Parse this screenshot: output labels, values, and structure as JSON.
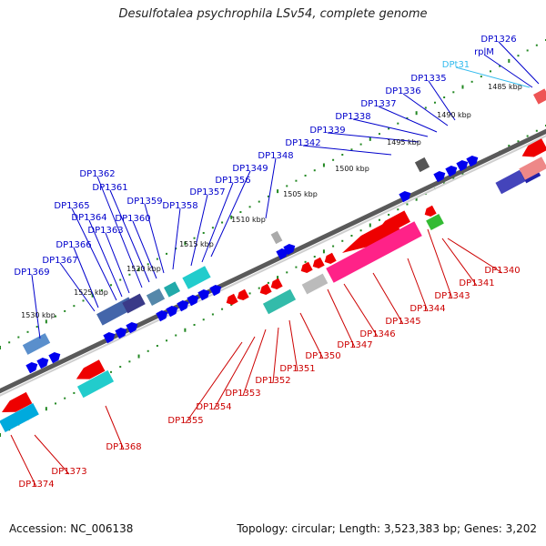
{
  "title": "Desulfotalea psychrophila LSv54, complete genome",
  "footer": {
    "accession": "Accession: NC_006138",
    "summary": "Topology: circular; Length: 3,523,383 bp; Genes: 3,202"
  },
  "colors": {
    "forward_label": "#0000cc",
    "reverse_label": "#cc0000",
    "trna_label": "#33bbee",
    "backbone": "#888888",
    "ticks": "#228822"
  },
  "scale_labels": [
    "1485 kbp",
    "1490 kbp",
    "1495 kbp",
    "1500 kbp",
    "1505 kbp",
    "1510 kbp",
    "1515 kbp",
    "1520 kbp",
    "1525 kbp",
    "1530 kbp"
  ],
  "forward_genes": [
    "DP1326",
    "rplM",
    "DPt31",
    "DP1335",
    "DP1336",
    "DP1337",
    "DP1338",
    "DP1339",
    "DP1342",
    "DP1348",
    "DP1349",
    "DP1356",
    "DP1357",
    "DP1358",
    "DP1359",
    "DP1360",
    "DP1361",
    "DP1362",
    "DP1363",
    "DP1364",
    "DP1365",
    "DP1366",
    "DP1367",
    "DP1369"
  ],
  "reverse_genes": [
    "DP1340",
    "DP1341",
    "DP1343",
    "DP1344",
    "DP1345",
    "DP1346",
    "DP1347",
    "DP1350",
    "DP1351",
    "DP1352",
    "DP1353",
    "DP1354",
    "DP1355",
    "DP1368",
    "DP1373",
    "DP1374"
  ]
}
